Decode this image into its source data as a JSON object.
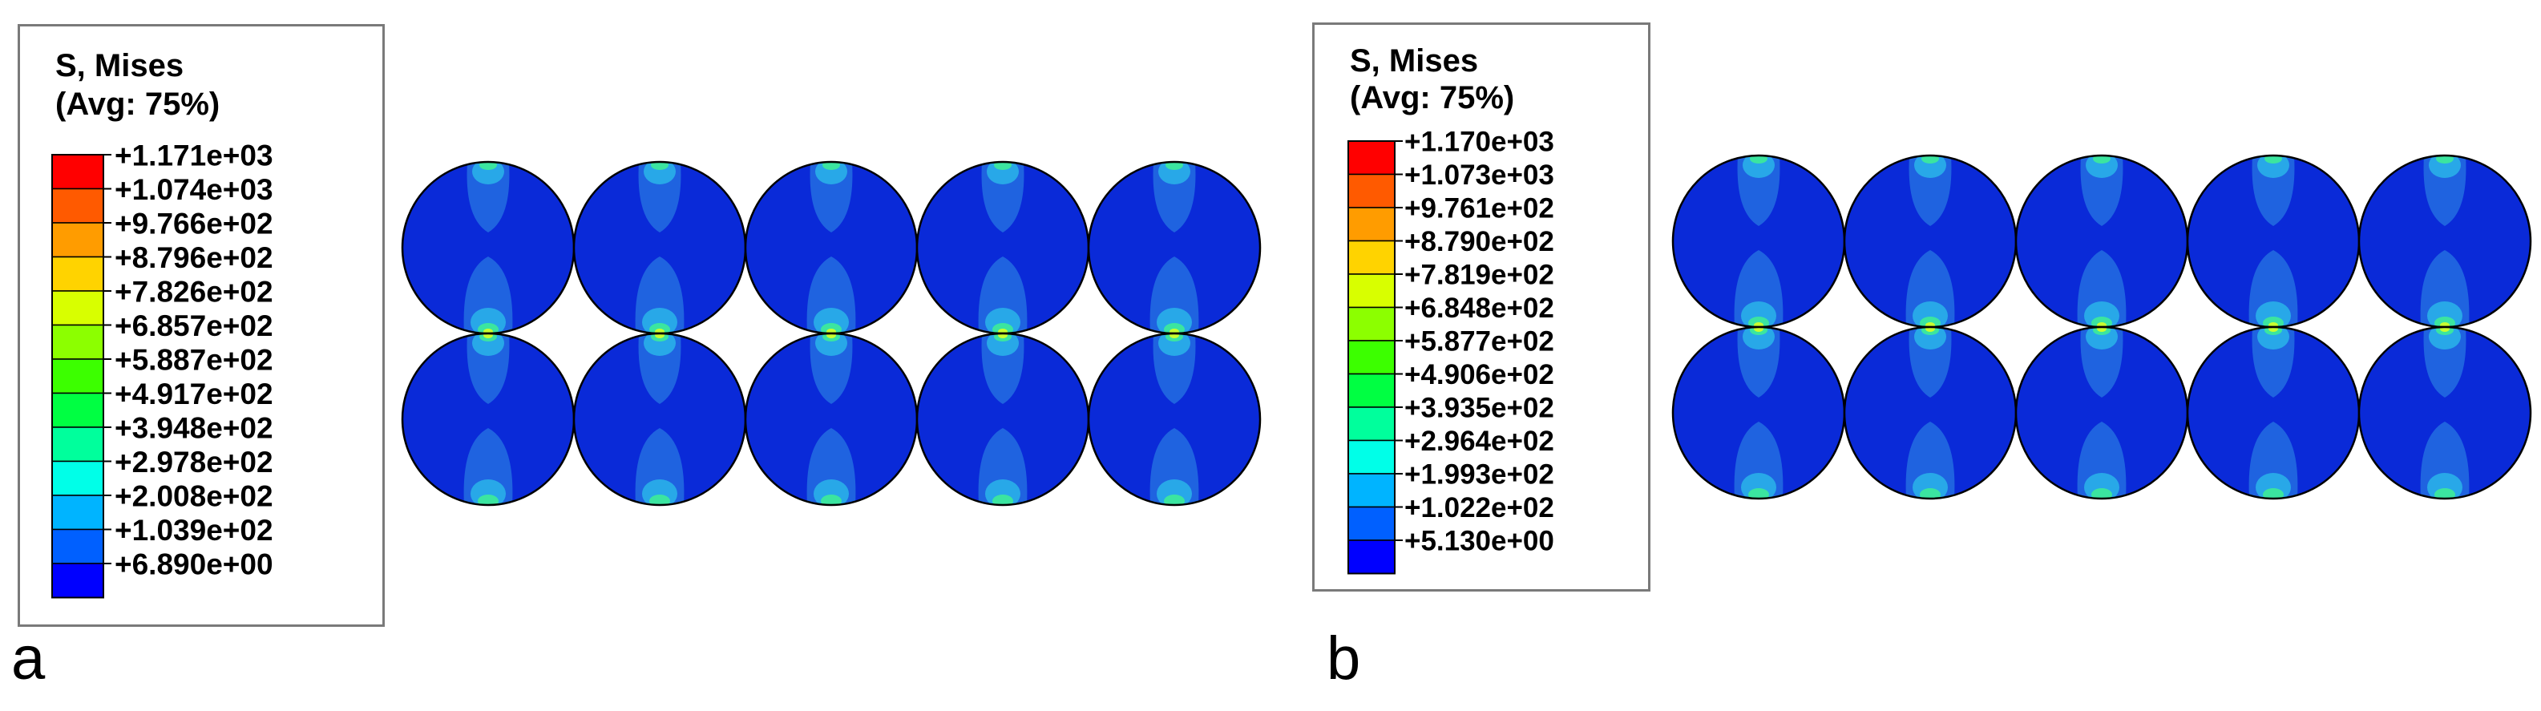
{
  "panels": [
    {
      "letter": "a",
      "legend": {
        "title_line1": "S, Mises",
        "title_line2": "(Avg: 75%)",
        "values": [
          "+1.171e+03",
          "+1.074e+03",
          "+9.766e+02",
          "+8.796e+02",
          "+7.826e+02",
          "+6.857e+02",
          "+5.887e+02",
          "+4.917e+02",
          "+3.948e+02",
          "+2.978e+02",
          "+2.008e+02",
          "+1.039e+02",
          "+6.890e+00"
        ]
      }
    },
    {
      "letter": "b",
      "legend": {
        "title_line1": "S, Mises",
        "title_line2": "(Avg: 75%)",
        "values": [
          "+1.170e+03",
          "+1.073e+03",
          "+9.761e+02",
          "+8.790e+02",
          "+7.819e+02",
          "+6.848e+02",
          "+5.877e+02",
          "+4.906e+02",
          "+3.935e+02",
          "+2.964e+02",
          "+1.993e+02",
          "+1.022e+02",
          "+5.130e+00"
        ]
      }
    }
  ],
  "colorbar": [
    "#ff0000",
    "#ff5a00",
    "#ff9c00",
    "#ffd300",
    "#d8ff00",
    "#8cff00",
    "#3cff00",
    "#00ff42",
    "#00ff9c",
    "#00ffe8",
    "#00b4ff",
    "#0060ff",
    "#0000ff"
  ],
  "field": {
    "rows": 2,
    "cols": 5,
    "base_color": "#0a2ad8",
    "halo_color": "#1f63e0",
    "mid_color": "#28a8e8",
    "hot_color": "#3be5a0",
    "peak_color": "#c8ff30",
    "outline_color": "#000000"
  }
}
